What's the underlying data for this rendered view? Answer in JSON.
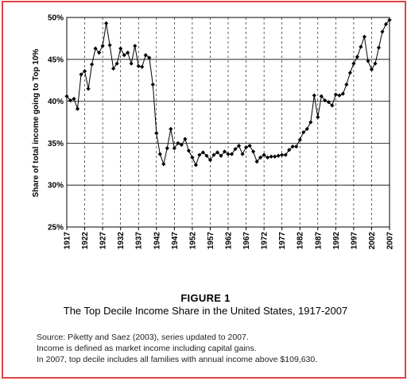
{
  "chart_data": {
    "type": "line",
    "figure_label": "FIGURE 1",
    "title": "The Top Decile Income Share in the United States, 1917-2007",
    "xlabel": "",
    "ylabel": "Share of total income going to Top 10%",
    "ylim": [
      25,
      50
    ],
    "xlim": [
      1917,
      2007
    ],
    "y_ticks": [
      "25%",
      "30%",
      "35%",
      "40%",
      "45%",
      "50%"
    ],
    "x_ticks": [
      "1917",
      "1922",
      "1927",
      "1932",
      "1937",
      "1942",
      "1947",
      "1952",
      "1957",
      "1962",
      "1967",
      "1972",
      "1977",
      "1982",
      "1987",
      "1992",
      "1997",
      "2002",
      "2007"
    ],
    "grid": "horizontal solid, vertical dashed",
    "legend": "none",
    "colors": {
      "line": "#000000",
      "grid": "#000000",
      "frame": "#e04444"
    },
    "series": [
      {
        "x": [
          1917,
          1918,
          1919,
          1920,
          1921,
          1922,
          1923,
          1924,
          1925,
          1926,
          1927,
          1928,
          1929,
          1930,
          1931,
          1932,
          1933,
          1934,
          1935,
          1936,
          1937,
          1938,
          1939,
          1940,
          1941,
          1942,
          1943,
          1944,
          1945,
          1946,
          1947,
          1948,
          1949,
          1950,
          1951,
          1952,
          1953,
          1954,
          1955,
          1956,
          1957,
          1958,
          1959,
          1960,
          1961,
          1962,
          1963,
          1964,
          1965,
          1966,
          1967,
          1968,
          1969,
          1970,
          1971,
          1972,
          1973,
          1974,
          1975,
          1976,
          1977,
          1978,
          1979,
          1980,
          1981,
          1982,
          1983,
          1984,
          1985,
          1986,
          1987,
          1988,
          1989,
          1990,
          1991,
          1992,
          1993,
          1994,
          1995,
          1996,
          1997,
          1998,
          1999,
          2000,
          2001,
          2002,
          2003,
          2004,
          2005,
          2006,
          2007
        ],
        "values": [
          40.6,
          40.1,
          40.3,
          39.1,
          43.2,
          43.6,
          41.5,
          44.4,
          46.3,
          45.8,
          46.6,
          49.3,
          46.7,
          43.9,
          44.5,
          46.3,
          45.5,
          45.8,
          44.5,
          46.6,
          44.2,
          44.1,
          45.5,
          45.2,
          42.0,
          36.2,
          33.7,
          32.5,
          34.4,
          36.7,
          34.4,
          35.0,
          34.8,
          35.5,
          34.1,
          33.3,
          32.4,
          33.6,
          33.9,
          33.5,
          33.0,
          33.6,
          33.9,
          33.5,
          34.0,
          33.7,
          33.7,
          34.3,
          34.7,
          33.7,
          34.5,
          34.7,
          34.0,
          32.8,
          33.3,
          33.6,
          33.3,
          33.4,
          33.4,
          33.5,
          33.6,
          33.6,
          34.2,
          34.6,
          34.6,
          35.4,
          36.3,
          36.7,
          37.5,
          40.7,
          38.1,
          40.6,
          40.1,
          39.9,
          39.5,
          40.8,
          40.7,
          40.9,
          42.0,
          43.4,
          44.5,
          45.3,
          46.5,
          47.7,
          44.8,
          43.8,
          44.5,
          46.4,
          48.3,
          49.2,
          49.7
        ]
      }
    ]
  },
  "notes": {
    "line1": "Source: Piketty and Saez (2003), series updated to 2007.",
    "line2": "Income is defined as market income including capital gains.",
    "line3": "In 2007, top decile includes all families with annual income above $109,630."
  }
}
